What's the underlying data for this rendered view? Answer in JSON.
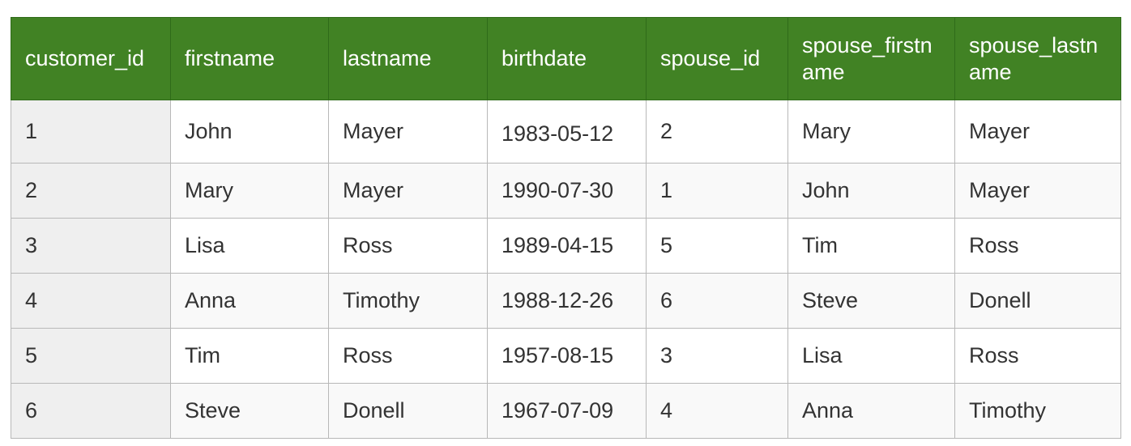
{
  "table": {
    "columns": [
      "customer_id",
      "firstname",
      "lastname",
      "birthdate",
      "spouse_id",
      "spouse_firstname",
      "spouse_lastname"
    ],
    "rows": [
      [
        "1",
        "John",
        "Mayer",
        "1983-05-12",
        "2",
        "Mary",
        "Mayer"
      ],
      [
        "2",
        "Mary",
        "Mayer",
        "1990-07-30",
        "1",
        "John",
        "Mayer"
      ],
      [
        "3",
        "Lisa",
        "Ross",
        "1989-04-15",
        "5",
        "Tim",
        "Ross"
      ],
      [
        "4",
        "Anna",
        "Timothy",
        "1988-12-26",
        "6",
        "Steve",
        "Donell"
      ],
      [
        "5",
        "Tim",
        "Ross",
        "1957-08-15",
        "3",
        "Lisa",
        "Ross"
      ],
      [
        "6",
        "Steve",
        "Donell",
        "1967-07-09",
        "4",
        "Anna",
        "Timothy"
      ]
    ]
  },
  "colors": {
    "header_bg": "#418224",
    "header_text": "#ffffff",
    "id_column_bg": "#efefef",
    "border": "#b8b8b8"
  }
}
